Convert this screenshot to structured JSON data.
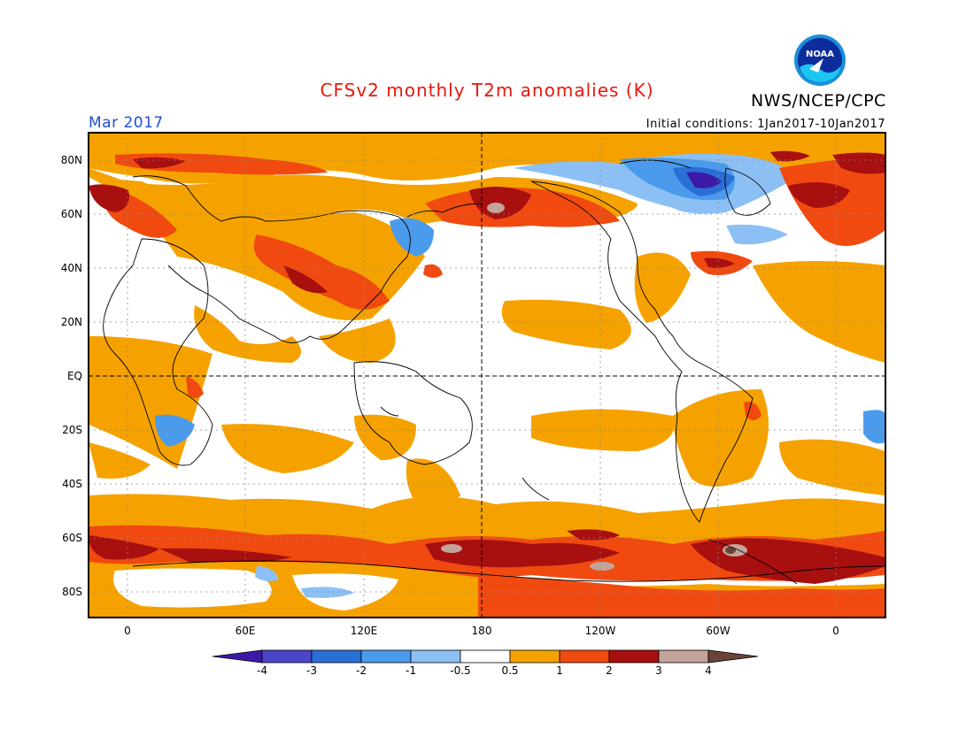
{
  "header": {
    "title": "CFSv2 monthly T2m anomalies (K)",
    "agency": "NWS/NCEP/CPC",
    "month": "Mar 2017",
    "initial_conditions": "Initial conditions: 1Jan2017-10Jan2017",
    "logo_text": "NOAA"
  },
  "map": {
    "lat_labels": [
      "80N",
      "60N",
      "40N",
      "20N",
      "EQ",
      "20S",
      "40S",
      "60S",
      "80S"
    ],
    "lon_labels": [
      "0",
      "60E",
      "120E",
      "180",
      "120W",
      "60W",
      "0"
    ]
  },
  "colorbar": {
    "labels": [
      "-4",
      "-3",
      "-2",
      "-1",
      "-0.5",
      "0.5",
      "1",
      "2",
      "3",
      "4"
    ],
    "colors": [
      "#3b1aa8",
      "#4a45c9",
      "#2b6ed6",
      "#4b9bec",
      "#8cc0f4",
      "#ffffff",
      "#f5a200",
      "#f04a10",
      "#a80f0f",
      "#c4a39a",
      "#6b4437"
    ]
  }
}
